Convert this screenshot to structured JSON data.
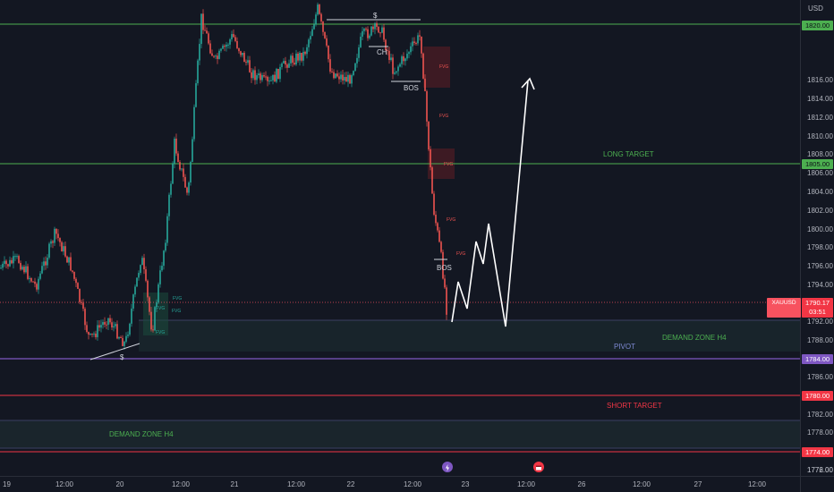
{
  "price_axis": {
    "currency": "USD",
    "ticks": [
      "1818.00",
      "1816.00",
      "1814.00",
      "1812.00",
      "1810.00",
      "1808.00",
      "1806.00",
      "1804.00",
      "1802.00",
      "1800.00",
      "1798.00",
      "1796.00",
      "1794.00",
      "1792.00",
      "1788.00",
      "1786.00",
      "1782.00",
      "1778.00",
      "1776.00",
      "1772.00"
    ],
    "badges": [
      {
        "text": "1820.00",
        "color": "#4caf50"
      },
      {
        "text": "1805.00",
        "color": "#4caf50"
      },
      {
        "text": "1784.00",
        "color": "#7e57c2"
      },
      {
        "text": "1780.00",
        "color": "#f23645"
      },
      {
        "text": "1774.00",
        "color": "#f23645"
      }
    ],
    "current_price": {
      "symbol": "XAUUSD",
      "price": "1790.17",
      "countdown": "03:51"
    }
  },
  "time_axis": {
    "ticks": [
      "19",
      "12:00",
      "20",
      "12:00",
      "21",
      "12:00",
      "22",
      "12:00",
      "23",
      "12:00",
      "26",
      "12:00",
      "27",
      "12:00"
    ]
  },
  "annotations": {
    "long_target": "LONG TARGET",
    "short_target": "SHORT TARGET",
    "pivot": "PIVOT",
    "demand_zone_upper": "DEMAND ZONE H4",
    "demand_zone_lower": "DEMAND ZONE H4",
    "liquidity_low": "$",
    "liquidity_high": "$",
    "ch": "CH",
    "bos_top": "BOS",
    "bos_mid": "BOS",
    "fvg": "FVG"
  },
  "colors": {
    "background": "#131722",
    "bull": "#26a69a",
    "bear": "#ef5350",
    "long_line": "#4caf50",
    "short_line": "#f23645",
    "pivot_line": "#7e57c2"
  }
}
